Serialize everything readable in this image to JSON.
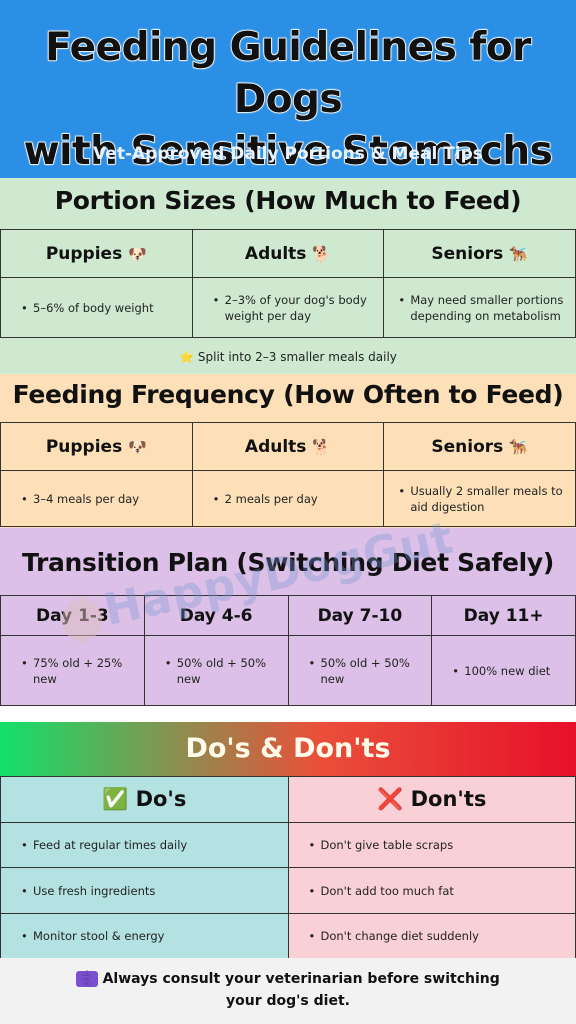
{
  "header": {
    "title_line1": "Feeding Guidelines for Dogs",
    "title_line2": "with Sensitive Stomachs",
    "subtitle": "Vet-Approved Daily Portions & Meal Tips"
  },
  "portion": {
    "title": "Portion Sizes (How Much to Feed)",
    "columns": [
      "Puppies",
      "Adults",
      "Seniors"
    ],
    "icons": [
      "🐶",
      "🐕",
      "🐕‍🦺"
    ],
    "cells": [
      "5–6% of body weight",
      "2–3% of your dog's body weight per day",
      "May need smaller portions depending on metabolism"
    ],
    "note_icon": "⭐",
    "note": "Split into 2–3 smaller meals daily"
  },
  "frequency": {
    "title": "Feeding Frequency (How Often to Feed)",
    "columns": [
      "Puppies",
      "Adults",
      "Seniors"
    ],
    "icons": [
      "🐶",
      "🐕",
      "🐕‍🦺"
    ],
    "cells": [
      "3–4 meals per day",
      "2 meals per day",
      "Usually 2 smaller meals to aid digestion"
    ]
  },
  "transition": {
    "title": "Transition Plan (Switching Diet Safely)",
    "columns": [
      "Day 1-3",
      "Day 4-6",
      "Day 7-10",
      "Day 11+"
    ],
    "cells": [
      "75% old + 25% new",
      "50% old + 50% new",
      "50% old + 50% new",
      "100% new diet"
    ]
  },
  "watermark": "HappyDogGut",
  "dos_donts": {
    "title": "Do's & Don'ts",
    "dos_icon": "✅",
    "dos_label": "Do's",
    "donts_icon": "❌",
    "donts_label": "Don'ts",
    "dos": [
      "Feed at regular times daily",
      "Use fresh ingredients",
      "Monitor stool & energy"
    ],
    "donts": [
      "Don't give table scraps",
      "Don't add too much fat",
      "Don't change diet suddenly"
    ]
  },
  "footer": {
    "icon": "⚕️",
    "line1": "Always consult your veterinarian before switching",
    "line2": "your dog's diet."
  },
  "colors": {
    "header_bg": "#2b8fe6",
    "portion_bg": "#cfe9d0",
    "frequency_bg": "#fde0b8",
    "transition_bg": "#dcc0e8",
    "dos_bg": "#b4e2e2",
    "donts_bg": "#f9d0d6"
  }
}
